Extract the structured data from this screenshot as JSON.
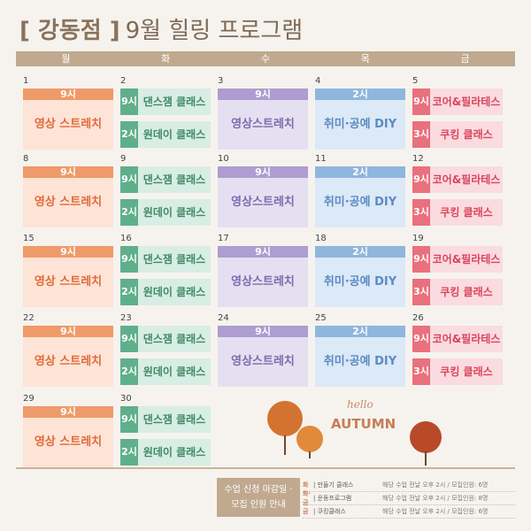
{
  "title": {
    "bracket": "[ 강동점 ]",
    "rest": "9월 힐링 프로그램"
  },
  "days": [
    "월",
    "화",
    "수",
    "목",
    "금"
  ],
  "weeks": [
    {
      "mon": "1",
      "tue": "2",
      "wed": "3",
      "thu": "4",
      "fri": "5"
    },
    {
      "mon": "8",
      "tue": "9",
      "wed": "10",
      "thu": "11",
      "fri": "12"
    },
    {
      "mon": "15",
      "tue": "16",
      "wed": "17",
      "thu": "18",
      "fri": "19"
    },
    {
      "mon": "22",
      "tue": "23",
      "wed": "24",
      "thu": "25",
      "fri": "26"
    },
    {
      "mon": "29",
      "tue": "30"
    }
  ],
  "programs": {
    "mon": {
      "time": "9시",
      "label": "영상 스트레치"
    },
    "tue": [
      {
        "time": "9시",
        "label": "댄스잼 클래스"
      },
      {
        "time": "2시",
        "label": "원데이 클래스"
      }
    ],
    "wed": {
      "time": "9시",
      "label": "영상스트레치"
    },
    "thu": {
      "time": "2시",
      "label": "취미·공예 DIY"
    },
    "fri": [
      {
        "time": "9시",
        "label": "코어&필라테스"
      },
      {
        "time": "3시",
        "label": "쿠킹 클래스"
      }
    ]
  },
  "decor": {
    "hello": "hello",
    "autumn": "AUTUMN"
  },
  "notice": {
    "box": [
      "수업 신청 마감일 ·",
      "모집 인원 안내"
    ],
    "rows": [
      {
        "day": "화",
        "name": "| 만들기 클래스",
        "desc": "해당 수업 전날 오후 2시 / 모집인원: 6명"
      },
      {
        "day": "화·금",
        "name": "| 운동프로그램",
        "desc": "해당 수업 전날 오후 2시 / 모집인원: 8명"
      },
      {
        "day": "금",
        "name": "| 쿠킹클래스",
        "desc": "해당 수업 전날 오후 2시 / 모집인원: 6명"
      }
    ]
  },
  "colors": {
    "mon": "#ef9a69",
    "tue": "#5faf8c",
    "wed": "#ad9dd0",
    "thu": "#8fb6dd",
    "fri": "#e9707d"
  }
}
